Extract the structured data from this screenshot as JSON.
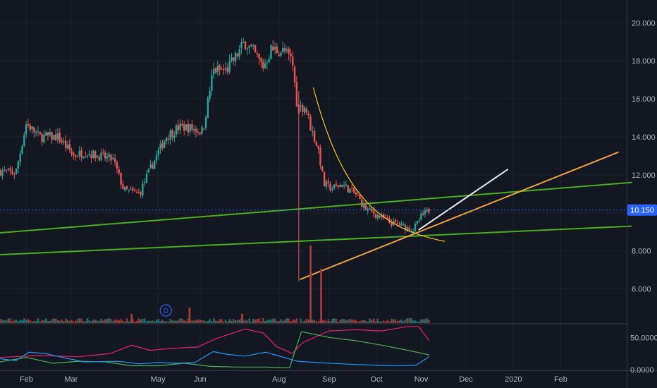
{
  "colors": {
    "background": "#131722",
    "grid": "#1e2230",
    "up": "#26a69a",
    "down": "#ef5350",
    "vol_up": "#1f7d75",
    "vol_down": "#a83c3b",
    "line_green": "#4caf1e",
    "line_orange": "#f0a040",
    "line_white": "#e8e8e8",
    "line_yellow": "#f5c518",
    "ind_pink": "#e91e63",
    "ind_green": "#4caf50",
    "ind_blue": "#2196f3",
    "badge": "#2962ff"
  },
  "chart_data": {
    "type": "candlestick",
    "main": {
      "ylim": [
        4.2,
        21.2
      ],
      "y_ticks": [
        "20.000",
        "18.000",
        "16.000",
        "14.000",
        "12.000",
        "10.000",
        "8.000",
        "6.000"
      ],
      "y_tick_values": [
        20,
        18,
        16,
        14,
        12,
        10,
        8,
        6
      ],
      "last_price": 10.15,
      "last_price_label": "10.150",
      "x_labels": [
        "Feb",
        "Mar",
        "May",
        "Jun",
        "Aug",
        "Sep",
        "Oct",
        "Nov",
        "Dec",
        "2020",
        "Feb"
      ],
      "x_label_positions": [
        1.0,
        2.7,
        6.0,
        7.6,
        10.6,
        12.5,
        14.3,
        16.0,
        17.7,
        19.5,
        21.3
      ],
      "bars_end_x": 16.3,
      "candle_anchors": [
        [
          0,
          12.2
        ],
        [
          0.6,
          12.1
        ],
        [
          1.0,
          14.7
        ],
        [
          1.5,
          14.0
        ],
        [
          2.2,
          14.0
        ],
        [
          2.8,
          13.0
        ],
        [
          3.2,
          13.2
        ],
        [
          4.3,
          12.8
        ],
        [
          4.7,
          11.2
        ],
        [
          5.3,
          11.0
        ],
        [
          5.6,
          12.0
        ],
        [
          6.3,
          14.0
        ],
        [
          6.8,
          14.5
        ],
        [
          7.1,
          14.5
        ],
        [
          7.7,
          14.3
        ],
        [
          8.1,
          17.5
        ],
        [
          8.6,
          17.5
        ],
        [
          9.0,
          18.3
        ],
        [
          9.3,
          19.0
        ],
        [
          9.6,
          18.5
        ],
        [
          10.0,
          17.7
        ],
        [
          10.3,
          18.6
        ],
        [
          10.8,
          18.5
        ],
        [
          11.1,
          18.0
        ],
        [
          11.3,
          15.5
        ],
        [
          11.6,
          15.6
        ],
        [
          11.8,
          14.5
        ],
        [
          12.1,
          13.3
        ],
        [
          12.3,
          11.5
        ],
        [
          12.6,
          11.3
        ],
        [
          13.0,
          11.5
        ],
        [
          13.5,
          11.0
        ],
        [
          13.9,
          10.2
        ],
        [
          14.3,
          9.9
        ],
        [
          14.8,
          9.5
        ],
        [
          15.3,
          9.3
        ],
        [
          15.7,
          9.1
        ],
        [
          16.0,
          9.8
        ],
        [
          16.3,
          10.15
        ]
      ],
      "gap_low_candle": {
        "x": 11.35,
        "open": 15.7,
        "close": 15.2,
        "high": 16.4,
        "low": 6.4
      },
      "trend_lines": [
        {
          "name": "green-upper",
          "color_key": "line_green",
          "points": [
            [
              0,
              8.95
            ],
            [
              24,
              11.6
            ]
          ]
        },
        {
          "name": "green-lower",
          "color_key": "line_green",
          "points": [
            [
              0,
              7.8
            ],
            [
              24,
              9.3
            ]
          ]
        },
        {
          "name": "orange-support",
          "color_key": "line_orange",
          "points": [
            [
              11.4,
              6.5
            ],
            [
              23.5,
              13.2
            ]
          ]
        },
        {
          "name": "white-projection",
          "color_key": "line_white",
          "points": [
            [
              15.9,
              9.1
            ],
            [
              19.3,
              12.3
            ]
          ]
        }
      ],
      "curve": {
        "name": "yellow-decay",
        "color_key": "line_yellow",
        "start": [
          11.9,
          16.6
        ],
        "end": [
          16.9,
          8.5
        ]
      }
    },
    "volume": {
      "spikes": [
        {
          "x": 11.8,
          "value": 1.0
        },
        {
          "x": 12.2,
          "value": 0.7
        }
      ],
      "small_spikes": [
        {
          "x": 7.2,
          "value": 0.2
        },
        {
          "x": 5.0,
          "value": 0.12
        },
        {
          "x": 9.2,
          "value": 0.12
        }
      ]
    },
    "indicator": {
      "ylim": [
        0,
        70
      ],
      "y_ticks": [
        "50.0000",
        "0.0000"
      ],
      "y_tick_values": [
        50,
        0
      ],
      "series": [
        {
          "color_key": "ind_pink",
          "points": [
            [
              0,
              19
            ],
            [
              1.5,
              22
            ],
            [
              3.0,
              20
            ],
            [
              4.2,
              25
            ],
            [
              5.0,
              38
            ],
            [
              5.7,
              30
            ],
            [
              6.5,
              33
            ],
            [
              7.5,
              35
            ],
            [
              8.2,
              48
            ],
            [
              9.3,
              63
            ],
            [
              10.0,
              57
            ],
            [
              10.5,
              36
            ],
            [
              11.1,
              25
            ],
            [
              11.5,
              42
            ],
            [
              12.5,
              60
            ],
            [
              13.5,
              62
            ],
            [
              14.5,
              60
            ],
            [
              15.5,
              67
            ],
            [
              15.9,
              67
            ],
            [
              16.3,
              45
            ]
          ]
        },
        {
          "color_key": "ind_green",
          "points": [
            [
              0,
              12
            ],
            [
              1.0,
              19
            ],
            [
              2.0,
              10
            ],
            [
              3.0,
              13
            ],
            [
              4.0,
              12
            ],
            [
              5.0,
              6
            ],
            [
              6.0,
              6
            ],
            [
              7.0,
              10
            ],
            [
              8.0,
              5
            ],
            [
              9.0,
              4
            ],
            [
              10.0,
              4
            ],
            [
              11.0,
              3
            ],
            [
              11.45,
              59
            ],
            [
              12.5,
              50
            ],
            [
              13.5,
              45
            ],
            [
              14.5,
              38
            ],
            [
              15.5,
              30
            ],
            [
              16.3,
              23
            ]
          ]
        },
        {
          "color_key": "ind_blue",
          "points": [
            [
              0,
              17
            ],
            [
              0.6,
              14
            ],
            [
              1.1,
              27
            ],
            [
              1.7,
              25
            ],
            [
              2.5,
              18
            ],
            [
              3.2,
              12
            ],
            [
              4.5,
              13
            ],
            [
              5.3,
              9
            ],
            [
              6.0,
              11
            ],
            [
              6.7,
              10
            ],
            [
              7.4,
              11
            ],
            [
              8.1,
              28
            ],
            [
              8.6,
              24
            ],
            [
              9.3,
              21
            ],
            [
              10.1,
              27
            ],
            [
              10.7,
              20
            ],
            [
              11.3,
              13
            ],
            [
              12.0,
              11
            ],
            [
              13.5,
              8
            ],
            [
              15.0,
              6
            ],
            [
              15.8,
              7
            ],
            [
              16.3,
              20
            ]
          ]
        }
      ]
    }
  },
  "marker": {
    "label": "D",
    "x": 6.3
  }
}
